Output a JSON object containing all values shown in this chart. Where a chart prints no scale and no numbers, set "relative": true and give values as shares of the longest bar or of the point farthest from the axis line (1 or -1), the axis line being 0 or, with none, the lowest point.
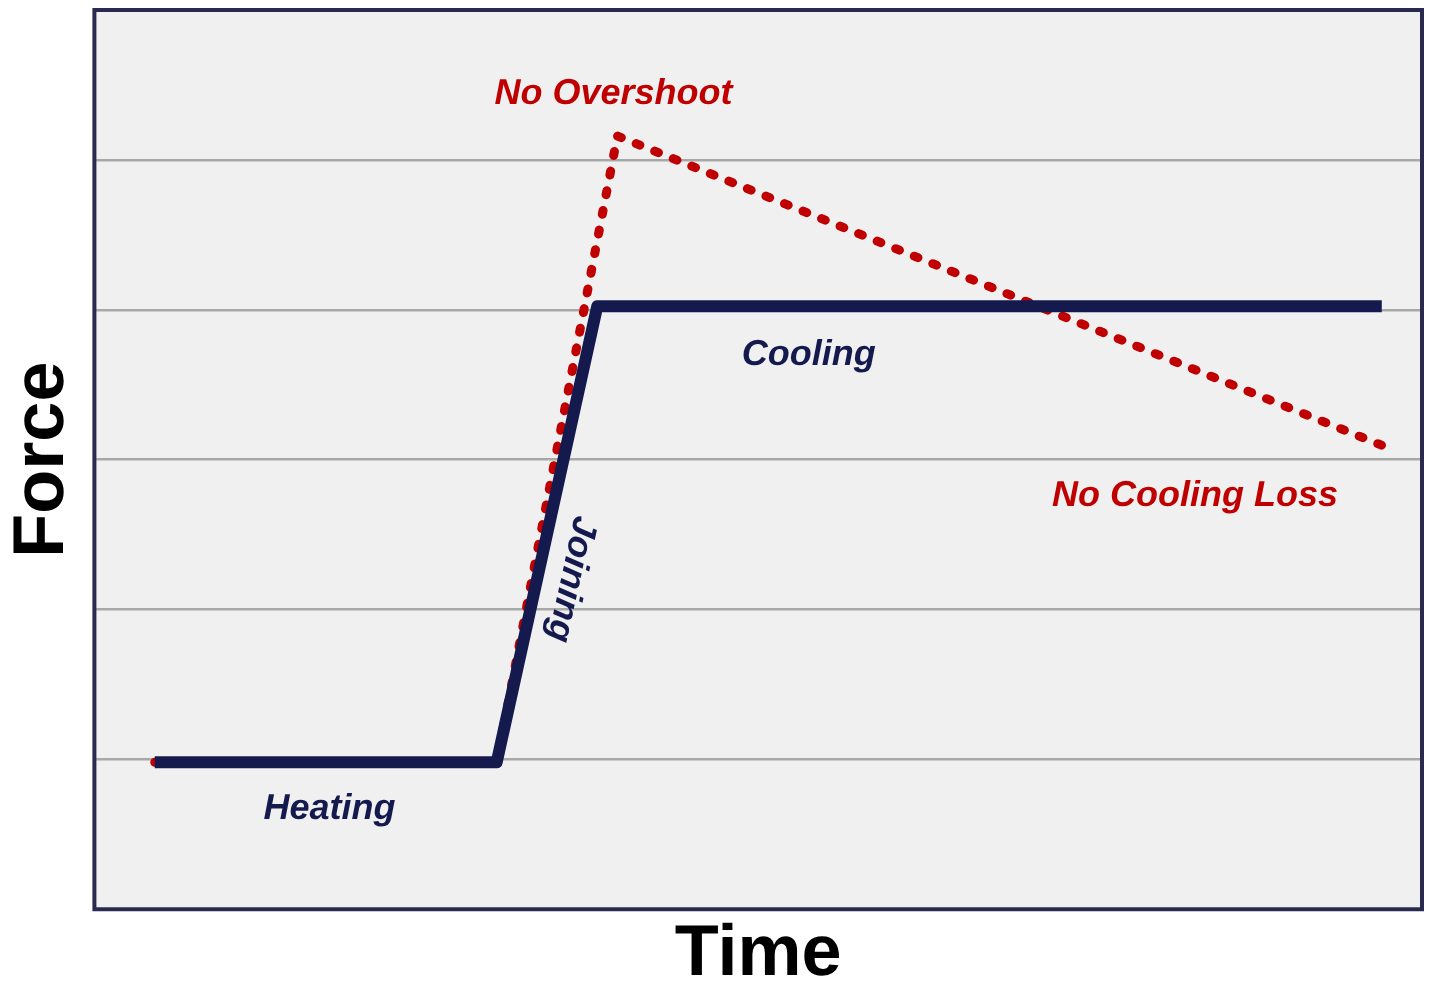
{
  "chart_data": {
    "type": "line",
    "relative": true,
    "xlabel": "Time",
    "ylabel": "Force",
    "grid": "y",
    "legend": false,
    "categories": [
      null,
      null,
      null,
      null,
      null,
      null,
      null,
      null,
      null,
      null,
      null,
      null,
      null,
      null,
      null,
      null,
      null,
      null,
      null,
      null,
      null,
      null,
      null,
      null,
      null,
      null,
      null,
      null,
      null,
      null,
      null,
      null,
      null,
      null,
      null,
      null,
      null,
      null,
      null,
      null,
      null,
      null,
      null,
      null,
      null,
      null,
      null,
      null,
      null,
      null,
      null,
      null,
      null,
      null,
      null,
      null,
      null,
      null,
      null,
      null,
      null,
      null,
      null,
      null,
      null,
      null,
      null
    ],
    "series": [
      {
        "color": "#141a4e",
        "line_style": "solid",
        "values": [
          null,
          null,
          null,
          0.19,
          null,
          null,
          null,
          null,
          null,
          null,
          null,
          null,
          null,
          null,
          null,
          null,
          null,
          null,
          null,
          null,
          0.19,
          null,
          null,
          null,
          null,
          0.78,
          null,
          null,
          null,
          null,
          null,
          null,
          null,
          null,
          null,
          null,
          null,
          null,
          null,
          null,
          null,
          null,
          null,
          null,
          null,
          null,
          null,
          null,
          null,
          null,
          null,
          null,
          null,
          null,
          null,
          null,
          null,
          null,
          null,
          null,
          null,
          null,
          null,
          null,
          0.78,
          null,
          null
        ]
      },
      {
        "color": "#c00000",
        "line_style": "dotted",
        "values": [
          null,
          null,
          null,
          0.19,
          null,
          null,
          null,
          null,
          null,
          null,
          null,
          null,
          null,
          null,
          null,
          null,
          null,
          null,
          null,
          null,
          0.19,
          null,
          null,
          null,
          null,
          null,
          1,
          null,
          null,
          null,
          null,
          null,
          null,
          null,
          null,
          null,
          null,
          null,
          null,
          null,
          null,
          null,
          null,
          null,
          null,
          null,
          null,
          null,
          null,
          null,
          null,
          null,
          null,
          null,
          null,
          null,
          null,
          null,
          null,
          null,
          null,
          null,
          null,
          null,
          0.6,
          null,
          null
        ]
      }
    ],
    "annotations": [
      "No Overshoot",
      "Cooling",
      "Joining",
      "Heating",
      "No Cooling Loss"
    ]
  }
}
